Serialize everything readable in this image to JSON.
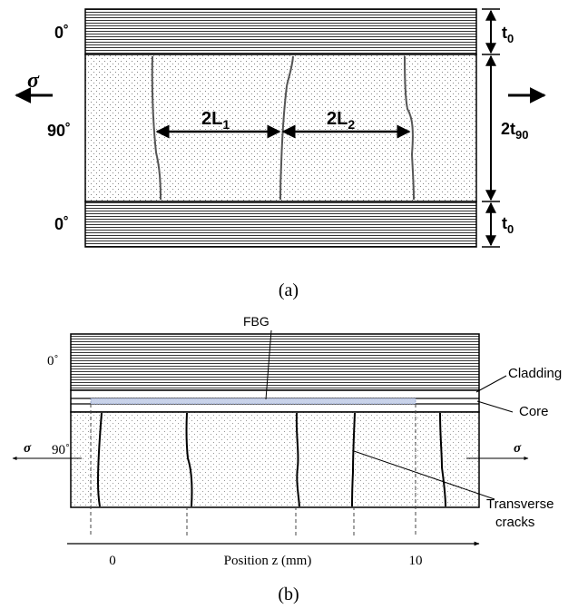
{
  "panel_a": {
    "label_0_top": "0˚",
    "label_90": "90˚",
    "label_0_bottom": "0˚",
    "sigma": "σ",
    "crack_span_1": {
      "base": "2L",
      "sub": "1"
    },
    "crack_span_2": {
      "base": "2L",
      "sub": "2"
    },
    "thickness_top": {
      "base": "t",
      "sub": "0"
    },
    "thickness_mid": {
      "base": "2t",
      "sub": "90"
    },
    "thickness_bottom": {
      "base": "t",
      "sub": "0"
    },
    "caption": "(a)"
  },
  "panel_b": {
    "fbg_label": "FBG",
    "label_0": "0˚",
    "label_90": "90˚",
    "cladding_label": "Cladding",
    "core_label": "Core",
    "sigma": "σ",
    "cracks_label_line1": "Transverse",
    "cracks_label_line2": "cracks",
    "axis_label": "Position z (mm)",
    "tick_0": "0",
    "tick_10": "10",
    "caption": "(b)"
  },
  "colors": {
    "ink": "#000000",
    "crack_a": "#555555",
    "core_fill": "#c9d3ea"
  }
}
